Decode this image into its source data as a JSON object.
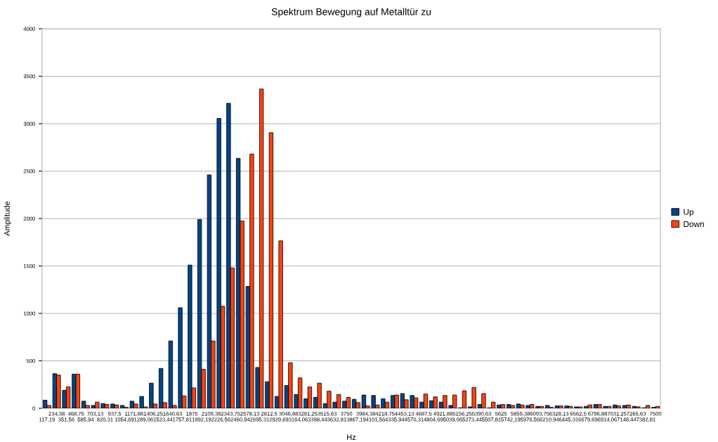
{
  "chart_data": {
    "type": "bar",
    "title": "Spektrum Bewegung auf Metalltür zu",
    "xlabel": "Hz",
    "ylabel": "Amplitude",
    "categories": [
      "117,19",
      "234,38",
      "351,56",
      "468,75",
      "585,94",
      "703,13",
      "820,31",
      "937,5",
      "1054,69",
      "1171,88",
      "1289,06",
      "1406,25",
      "1523,44",
      "1640,63",
      "1757,81",
      "1875",
      "1992,19",
      "2109,38",
      "2226,56",
      "2343,75",
      "2460,94",
      "2578,13",
      "2695,31",
      "2812,5",
      "2929,69",
      "3046,88",
      "3164,06",
      "3281,25",
      "3398,44",
      "3515,63",
      "3632,81",
      "3750",
      "3867,19",
      "3984,38",
      "4101,56",
      "4218,75",
      "4335,94",
      "4453,13",
      "4570,31",
      "4687,5",
      "4804,69",
      "4921,88",
      "5039,06",
      "5156,25",
      "5273,44",
      "5390,63",
      "5507,81",
      "5625",
      "5742,19",
      "5859,38",
      "5976,56",
      "6093,75",
      "6210,94",
      "6328,13",
      "6445,31",
      "6562,5",
      "6679,69",
      "6796,88",
      "6914,06",
      "7031,25",
      "7148,44",
      "7265,63",
      "7382,81",
      "7500"
    ],
    "series": [
      {
        "name": "Up",
        "color": "#004586",
        "values": [
          85,
          365,
          190,
          360,
          75,
          30,
          50,
          45,
          30,
          75,
          125,
          265,
          420,
          710,
          1060,
          1510,
          1990,
          2460,
          3055,
          3215,
          2635,
          1285,
          430,
          280,
          125,
          240,
          145,
          100,
          115,
          50,
          65,
          75,
          95,
          140,
          135,
          100,
          135,
          155,
          135,
          65,
          80,
          65,
          30,
          5,
          15,
          40,
          5,
          35,
          40,
          45,
          30,
          20,
          30,
          25,
          25,
          15,
          20,
          40,
          20,
          35,
          30,
          20,
          5,
          10
        ]
      },
      {
        "name": "Down",
        "color": "#ff420e",
        "values": [
          30,
          350,
          225,
          360,
          30,
          65,
          40,
          35,
          10,
          45,
          15,
          45,
          60,
          30,
          130,
          215,
          410,
          710,
          1075,
          1480,
          1975,
          2680,
          3365,
          2905,
          1765,
          480,
          320,
          225,
          265,
          180,
          145,
          115,
          60,
          25,
          35,
          65,
          140,
          90,
          110,
          150,
          120,
          135,
          140,
          185,
          220,
          155,
          65,
          40,
          30,
          35,
          40,
          20,
          10,
          25,
          20,
          15,
          35,
          40,
          20,
          25,
          35,
          15,
          30,
          20
        ]
      }
    ],
    "ylim": [
      0,
      4000
    ],
    "yticks": [
      0,
      500,
      1000,
      1500,
      2000,
      2500,
      3000,
      3500,
      4000
    ],
    "grid": "y",
    "legend": "right"
  }
}
